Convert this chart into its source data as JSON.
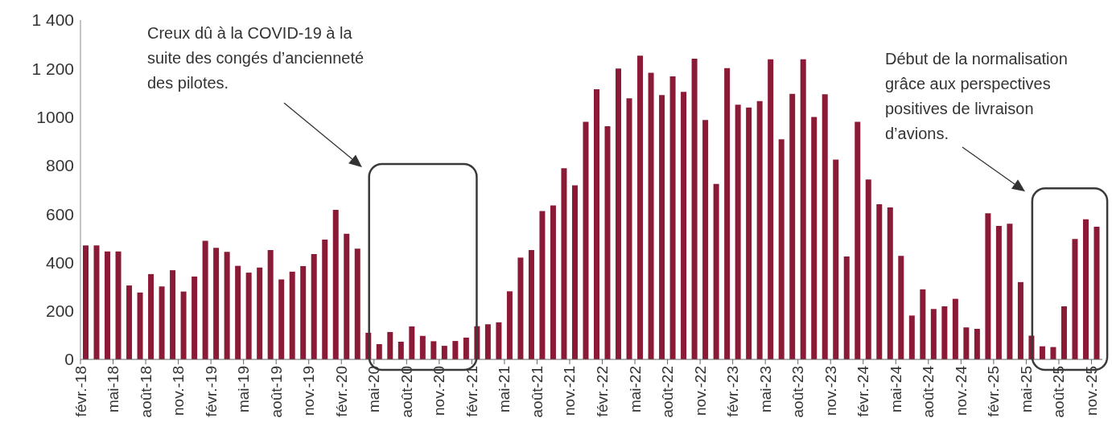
{
  "chart_data": {
    "type": "bar",
    "categories": [
      "févr.-18",
      null,
      null,
      "mai-18",
      null,
      null,
      "août-18",
      null,
      null,
      "nov.-18",
      null,
      null,
      "févr.-19",
      null,
      null,
      "mai-19",
      null,
      null,
      "août-19",
      null,
      null,
      "nov.-19",
      null,
      null,
      "févr.-20",
      null,
      null,
      "mai-20",
      null,
      null,
      "août-20",
      null,
      null,
      "nov.-20",
      null,
      null,
      "févr.-21",
      null,
      null,
      "mai-21",
      null,
      null,
      "août-21",
      null,
      null,
      "nov.-21",
      null,
      null,
      "févr.-22",
      null,
      null,
      "mai-22",
      null,
      null,
      "août-22",
      null,
      null,
      "nov.-22",
      null,
      null,
      "févr.-23",
      null,
      null,
      "mai-23",
      null,
      null,
      "août-23",
      null,
      null,
      "nov.-23",
      null,
      null,
      "févr.-24",
      null,
      null,
      "mai-24",
      null,
      null,
      "août-24",
      null,
      null,
      "nov.-24",
      null,
      null,
      "févr.-25",
      null,
      null,
      "mai-25",
      null,
      null,
      "août-25",
      null,
      null,
      "nov.-25"
    ],
    "values": [
      470,
      470,
      445,
      445,
      305,
      276,
      352,
      301,
      368,
      280,
      342,
      489,
      460,
      444,
      386,
      358,
      379,
      451,
      330,
      362,
      385,
      435,
      494,
      617,
      518,
      457,
      110,
      63,
      113,
      73,
      136,
      97,
      75,
      56,
      76,
      90,
      137,
      145,
      153,
      281,
      420,
      451,
      612,
      635,
      789,
      718,
      980,
      1115,
      962,
      1200,
      1077,
      1253,
      1183,
      1091,
      1168,
      1104,
      1241,
      988,
      724,
      1202,
      1051,
      1039,
      1066,
      1238,
      908,
      1096,
      1238,
      1000,
      1094,
      824,
      425,
      980,
      742,
      640,
      627,
      427,
      181,
      289,
      208,
      219,
      250,
      132,
      126,
      603,
      551,
      560,
      319,
      98,
      54,
      51,
      219,
      497,
      578,
      547
    ],
    "color": "#8b1a36",
    "ylim": [
      0,
      1400
    ],
    "yticks": [
      0,
      200,
      400,
      600,
      800,
      {
        "value": 1000,
        "label": "1000"
      },
      {
        "value": 1200,
        "label": "1 200"
      },
      {
        "value": 1400,
        "label": "1 400"
      }
    ],
    "grid": false,
    "annotations": [
      "Creux dû à la COVID-19 à la suite des congés d’ancienneté des pilotes.",
      "Début de la normalisation grâce aux perspectives positives de livraison d’avions."
    ]
  }
}
